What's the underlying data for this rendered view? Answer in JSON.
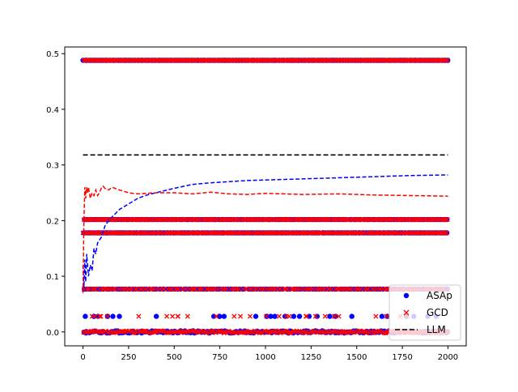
{
  "chart_data": {
    "type": "scatter",
    "title": "",
    "xlabel": "",
    "ylabel": "",
    "xlim": [
      -100,
      2100
    ],
    "ylim": [
      -0.025,
      0.512
    ],
    "grid": false,
    "legend_position": "lower-right",
    "x_ticks": [
      {
        "value": 0,
        "label": "0"
      },
      {
        "value": 250,
        "label": "250"
      },
      {
        "value": 500,
        "label": "500"
      },
      {
        "value": 750,
        "label": "750"
      },
      {
        "value": 1000,
        "label": "1000"
      },
      {
        "value": 1250,
        "label": "1250"
      },
      {
        "value": 1500,
        "label": "1500"
      },
      {
        "value": 1750,
        "label": "1750"
      },
      {
        "value": 2000,
        "label": "2000"
      }
    ],
    "y_ticks": [
      {
        "value": 0.0,
        "label": "0.0"
      },
      {
        "value": 0.1,
        "label": "0.1"
      },
      {
        "value": 0.2,
        "label": "0.2"
      },
      {
        "value": 0.3,
        "label": "0.3"
      },
      {
        "value": 0.4,
        "label": "0.4"
      },
      {
        "value": 0.5,
        "label": "0.5"
      }
    ],
    "scatter_levels": [
      0.488,
      0.202,
      0.178,
      0.077,
      0.028,
      0.0
    ],
    "series": [
      {
        "name": "ASAp",
        "kind": "scatter",
        "marker": "circle",
        "color": "#0000ff",
        "x_range": [
          0,
          2000
        ],
        "levels": [
          0.488,
          0.202,
          0.178,
          0.077,
          0.028,
          0.0
        ],
        "running_mean": {
          "x": [
            0,
            5,
            10,
            15,
            20,
            30,
            40,
            50,
            60,
            70,
            80,
            100,
            120,
            140,
            170,
            200,
            250,
            300,
            350,
            400,
            500,
            600,
            700,
            800,
            900,
            1000,
            1200,
            1400,
            1600,
            1800,
            2000
          ],
          "y": [
            0.12,
            0.08,
            0.13,
            0.09,
            0.14,
            0.1,
            0.12,
            0.11,
            0.15,
            0.14,
            0.16,
            0.17,
            0.19,
            0.2,
            0.21,
            0.22,
            0.23,
            0.24,
            0.246,
            0.25,
            0.258,
            0.265,
            0.268,
            0.27,
            0.272,
            0.273,
            0.275,
            0.277,
            0.279,
            0.281,
            0.282
          ]
        }
      },
      {
        "name": "GCD",
        "kind": "scatter",
        "marker": "x",
        "color": "#ff0000",
        "x_range": [
          0,
          2000
        ],
        "levels": [
          0.488,
          0.202,
          0.178,
          0.077,
          0.028,
          0.0
        ],
        "running_mean": {
          "x": [
            0,
            5,
            10,
            15,
            20,
            25,
            30,
            40,
            50,
            60,
            70,
            80,
            90,
            100,
            110,
            120,
            140,
            160,
            200,
            250,
            300,
            400,
            500,
            600,
            700,
            800,
            900,
            1000,
            1200,
            1400,
            1600,
            1800,
            2000
          ],
          "y": [
            0.07,
            0.2,
            0.26,
            0.24,
            0.26,
            0.25,
            0.26,
            0.24,
            0.25,
            0.245,
            0.255,
            0.245,
            0.25,
            0.258,
            0.262,
            0.258,
            0.255,
            0.26,
            0.255,
            0.25,
            0.248,
            0.25,
            0.25,
            0.248,
            0.251,
            0.248,
            0.247,
            0.249,
            0.247,
            0.248,
            0.246,
            0.245,
            0.244
          ]
        }
      },
      {
        "name": "LLM",
        "kind": "line",
        "style": "dashed",
        "color": "#000000",
        "x": [
          0,
          2000
        ],
        "y": [
          0.318,
          0.318
        ]
      }
    ]
  }
}
